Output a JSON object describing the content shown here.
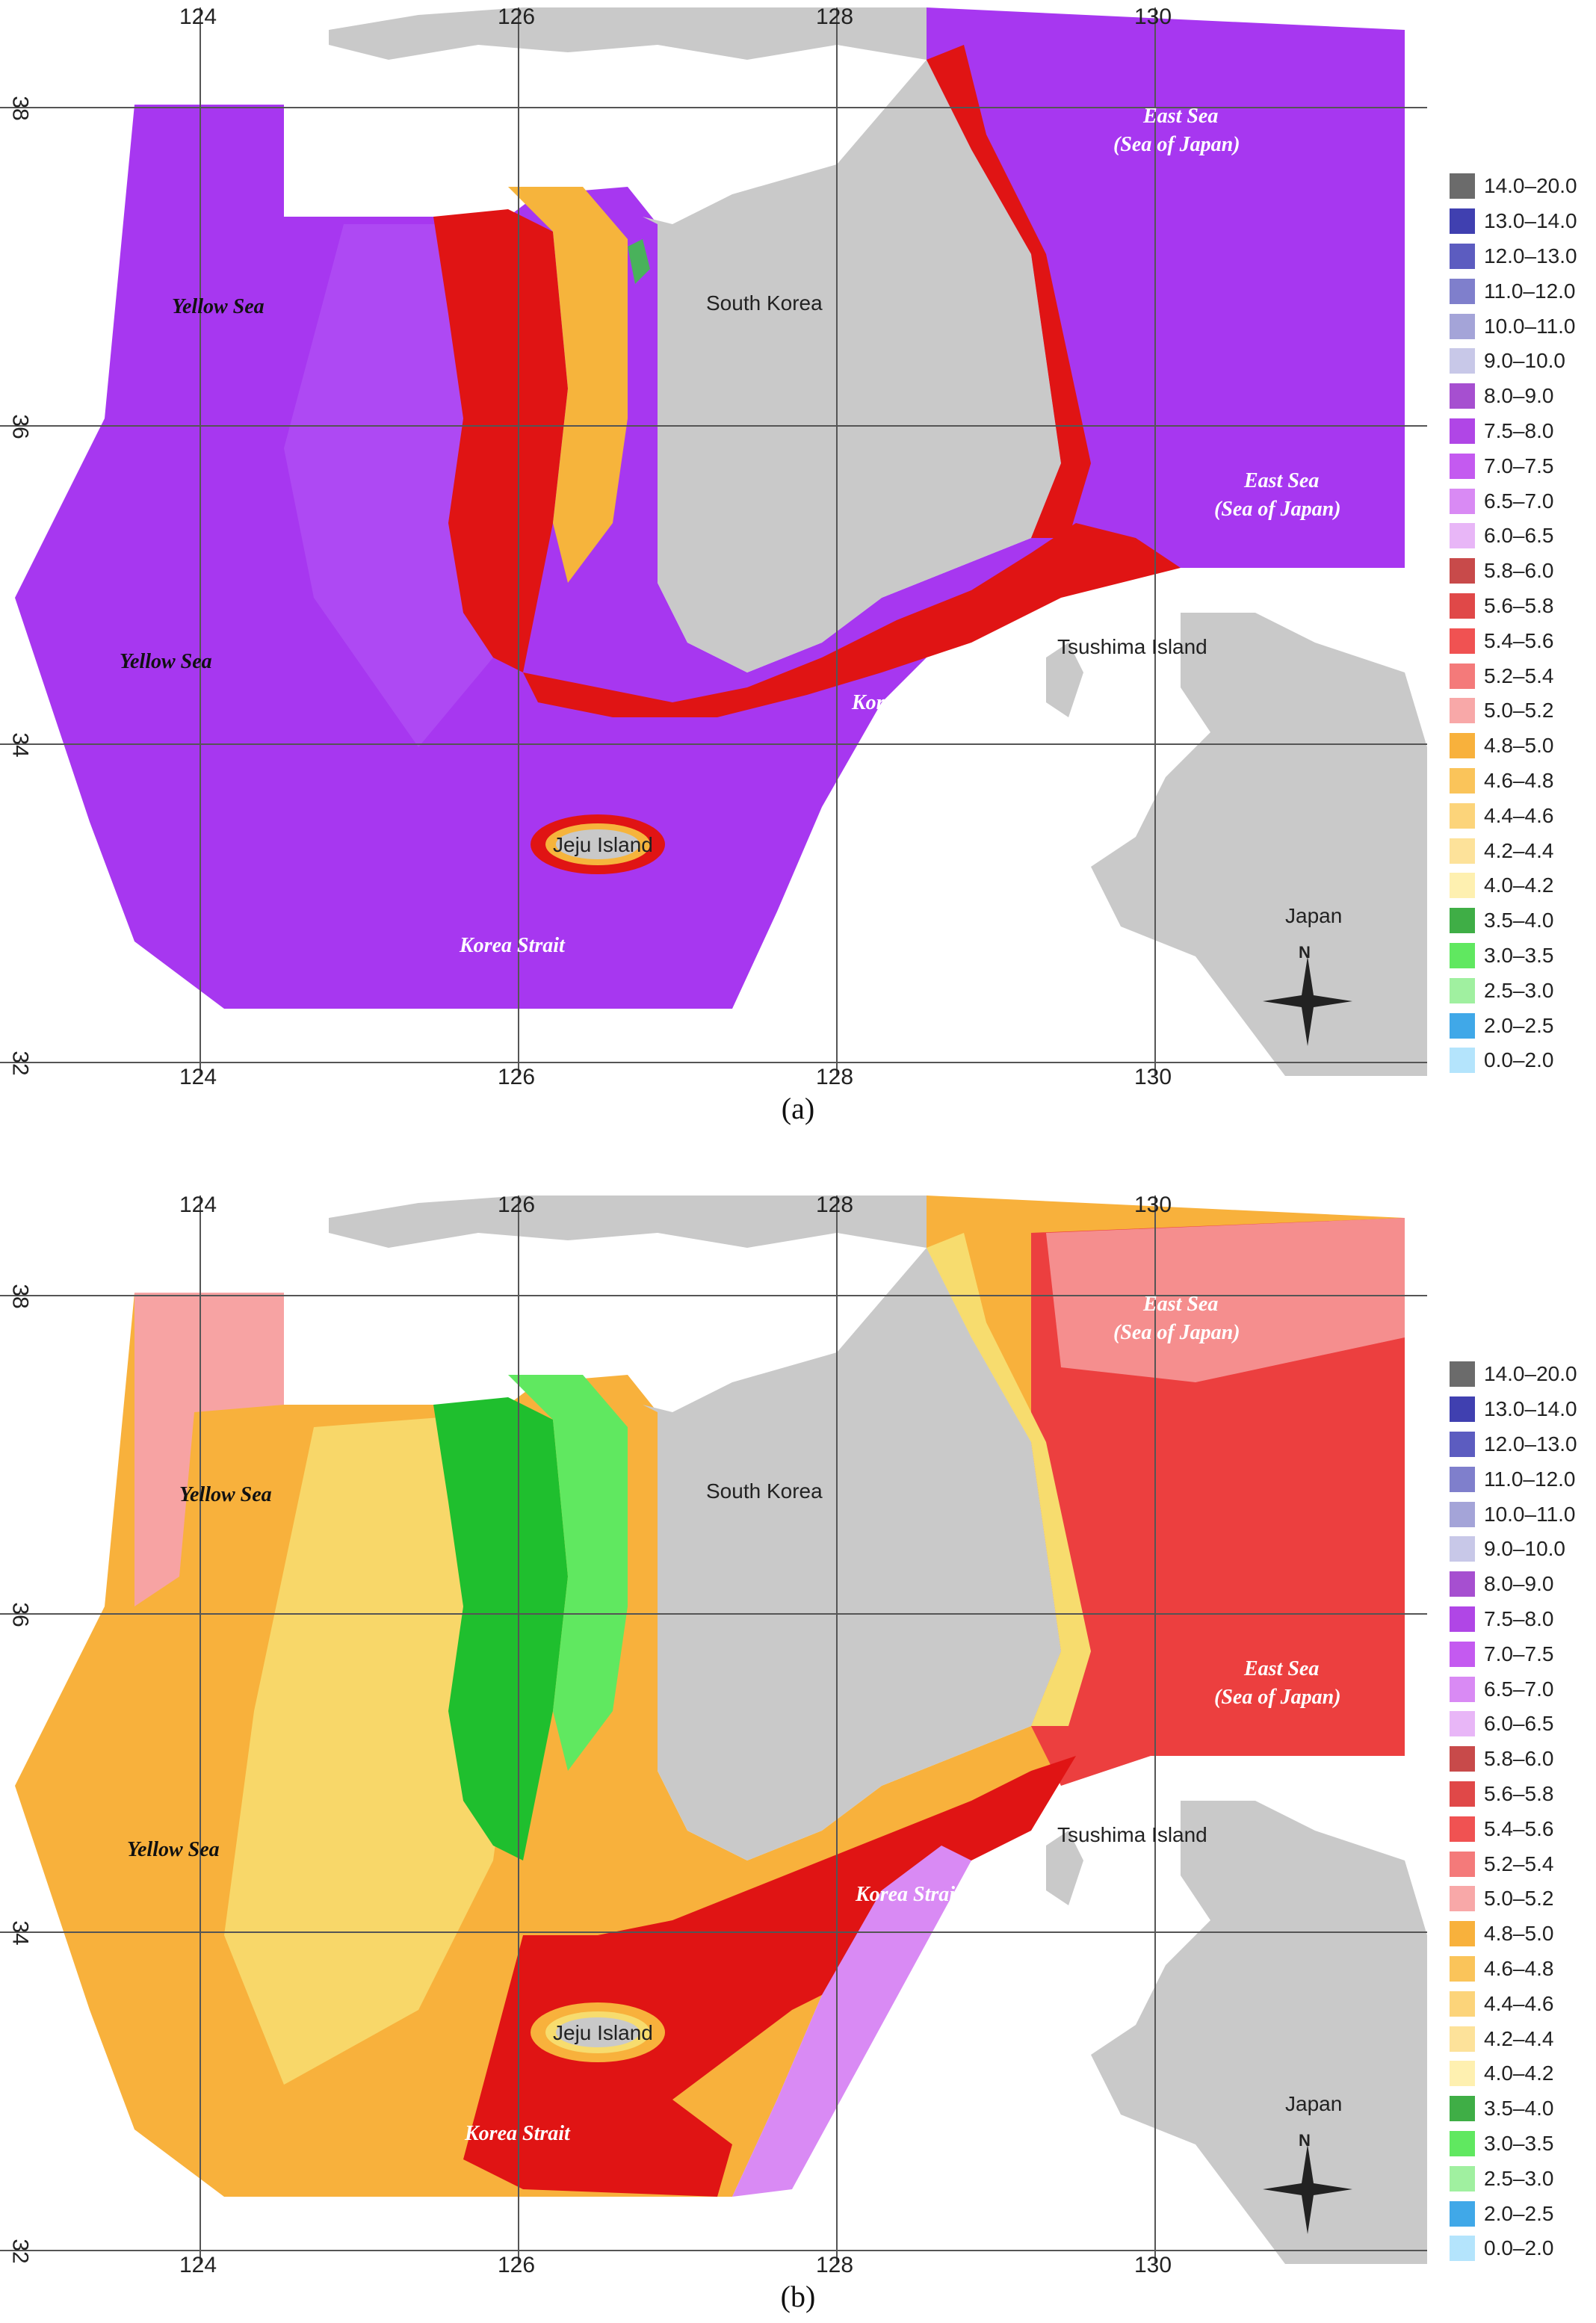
{
  "panels": [
    {
      "caption": "(a)",
      "regions": {
        "yellow_sea": "Yellow Sea",
        "east_sea": "East Sea",
        "sea_of_japan": "(Sea of Japan)",
        "south_korea": "South Korea",
        "tsushima": "Tsushima Island",
        "korea_strait": "Korea Strait",
        "jeju": "Jeju Island",
        "japan": "Japan"
      },
      "compass_label": "N",
      "colors": {
        "open_sea": "#a737f0",
        "coastal_band": "#e01414",
        "near_shore": "#f6b43c",
        "shore": "#3fc04a",
        "land": "#c9c9c9"
      }
    },
    {
      "caption": "(b)",
      "regions": {
        "yellow_sea": "Yellow Sea",
        "east_sea": "East Sea",
        "sea_of_japan": "(Sea of Japan)",
        "south_korea": "South Korea",
        "tsushima": "Tsushima Island",
        "korea_strait": "Korea Strait",
        "jeju": "Jeju Island",
        "japan": "Japan"
      },
      "compass_label": "N",
      "colors": {
        "open_sea": "#f8b13c",
        "coastal_band": "#1fbf2e",
        "near_shore": "#f7dc6e",
        "east_sea": "#ec3f3f",
        "land": "#c9c9c9"
      }
    }
  ],
  "grid": {
    "lon_labels": [
      "124",
      "126",
      "128",
      "130"
    ],
    "lat_labels": [
      "38",
      "36",
      "34",
      "32"
    ]
  },
  "legend": [
    {
      "label": "14.0–20.0",
      "color": "#6b6b6b"
    },
    {
      "label": "13.0–14.0",
      "color": "#4040b0"
    },
    {
      "label": "12.0–13.0",
      "color": "#5c5cc0"
    },
    {
      "label": "11.0–12.0",
      "color": "#7f7fcc"
    },
    {
      "label": "10.0–11.0",
      "color": "#a4a4d8"
    },
    {
      "label": "9.0–10.0",
      "color": "#c8c8e8"
    },
    {
      "label": "8.0–9.0",
      "color": "#a64fd0"
    },
    {
      "label": "7.5–8.0",
      "color": "#b046e6"
    },
    {
      "label": "7.0–7.5",
      "color": "#c45af0"
    },
    {
      "label": "6.5–7.0",
      "color": "#d98af4"
    },
    {
      "label": "6.0–6.5",
      "color": "#e8b6f7"
    },
    {
      "label": "5.8–6.0",
      "color": "#c84a4a"
    },
    {
      "label": "5.6–5.8",
      "color": "#e04848"
    },
    {
      "label": "5.4–5.6",
      "color": "#f05252"
    },
    {
      "label": "5.2–5.4",
      "color": "#f47a7a"
    },
    {
      "label": "5.0–5.2",
      "color": "#f8a8a8"
    },
    {
      "label": "4.8–5.0",
      "color": "#f8b13c"
    },
    {
      "label": "4.6–4.8",
      "color": "#fac45a"
    },
    {
      "label": "4.4–4.6",
      "color": "#fcd47a"
    },
    {
      "label": "4.2–4.4",
      "color": "#fde29a"
    },
    {
      "label": "4.0–4.2",
      "color": "#fef0b0"
    },
    {
      "label": "3.5–4.0",
      "color": "#3fae46"
    },
    {
      "label": "3.0–3.5",
      "color": "#60e860"
    },
    {
      "label": "2.5–3.0",
      "color": "#a0f0a0"
    },
    {
      "label": "2.0–2.5",
      "color": "#40a8e8"
    },
    {
      "label": "0.0–2.0",
      "color": "#b4e4fc"
    }
  ]
}
